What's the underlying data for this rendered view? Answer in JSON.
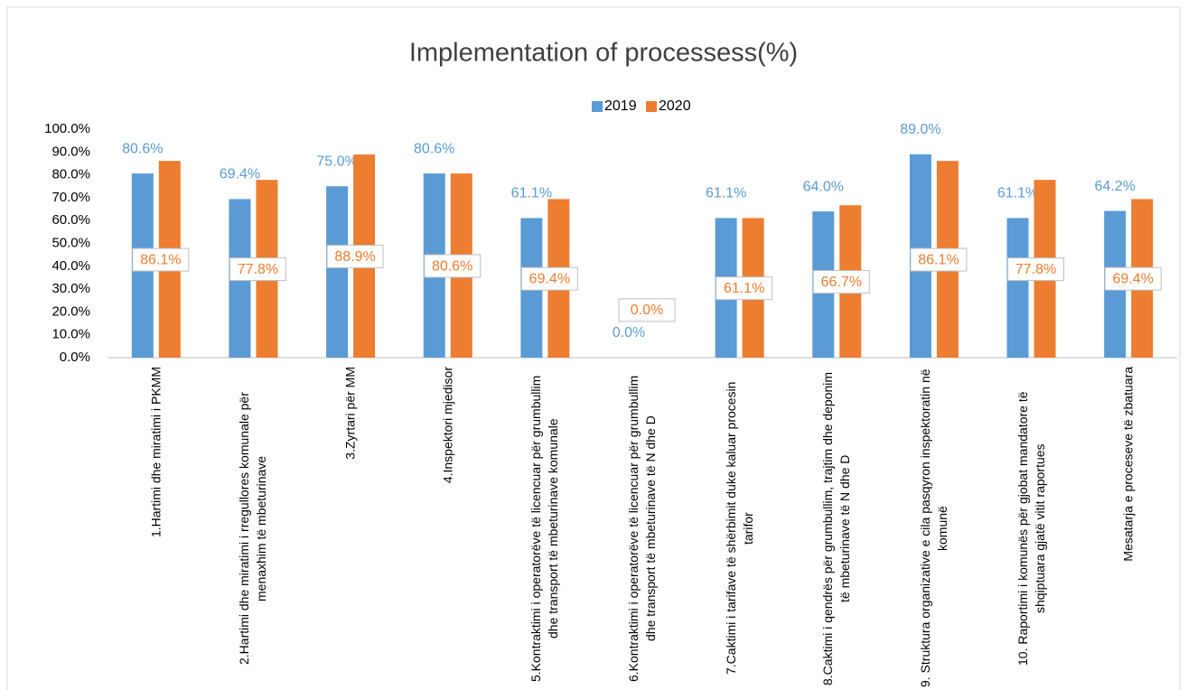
{
  "chart_data": {
    "type": "bar",
    "title": "Implementation of processess(%)",
    "categories": [
      "1.Hartimi dhe miratimi i PKMM",
      "2.Hartimi dhe miratimi i rregullores komunale për menaxhim të mbeturinave",
      "3.Zyrtari për MM",
      "4.Inspektori mjedisor",
      "5.Kontraktimi i operatorëve të licencuar për grumbullim dhe transport të mbeturinave komunale",
      "6.Kontraktimi i operatorëve të licencuar për grumbullim dhe transport të mbeturinave të N dhe D",
      "7.Caktimi i tarifave të shërbimit duke kaluar procesin tarifor",
      "8.Caktimi i qendrës për grumbullim, trajtim dhe deponim të mbeturinave të N dhe D",
      "9. Struktura organizative e cila pasqyron inspektoratin në komunë",
      "10. Raportimi i komunës për gjobat mandatore të shqiptuara gjatë vitit raportues",
      "Mesatarja e proceseve të zbatuara"
    ],
    "series": [
      {
        "name": "2019",
        "color": "#5b9bd5",
        "values": [
          80.6,
          69.4,
          75.0,
          80.6,
          61.1,
          0.0,
          61.1,
          64.0,
          89.0,
          61.1,
          64.2
        ],
        "value_labels": [
          "80.6%",
          "69.4%",
          "75.0%",
          "80.6%",
          "61.1%",
          "0.0%",
          "61.1%",
          "64.0%",
          "89.0%",
          "61.1%",
          "64.2%"
        ]
      },
      {
        "name": "2020",
        "color": "#ed7d31",
        "values": [
          86.1,
          77.8,
          88.9,
          80.6,
          69.4,
          0.0,
          61.1,
          66.7,
          86.1,
          77.8,
          69.4
        ],
        "value_labels": [
          "86.1%",
          "77.8%",
          "88.9%",
          "80.6%",
          "69.4%",
          "0.0%",
          "61.1%",
          "66.7%",
          "86.1%",
          "77.8%",
          "69.4%"
        ]
      }
    ],
    "ylim": [
      0,
      100
    ],
    "yticks": [
      {
        "value": 0,
        "label": "0.0%"
      },
      {
        "value": 10,
        "label": "10.0%"
      },
      {
        "value": 20,
        "label": "20.0%"
      },
      {
        "value": 30,
        "label": "30.0%"
      },
      {
        "value": 40,
        "label": "40.0%"
      },
      {
        "value": 50,
        "label": "50.0%"
      },
      {
        "value": 60,
        "label": "60.0%"
      },
      {
        "value": 70,
        "label": "70.0%"
      },
      {
        "value": 80,
        "label": "80.0%"
      },
      {
        "value": 90,
        "label": "90.0%"
      },
      {
        "value": 100,
        "label": "100.0%"
      }
    ],
    "legend": "top",
    "grid": false
  }
}
